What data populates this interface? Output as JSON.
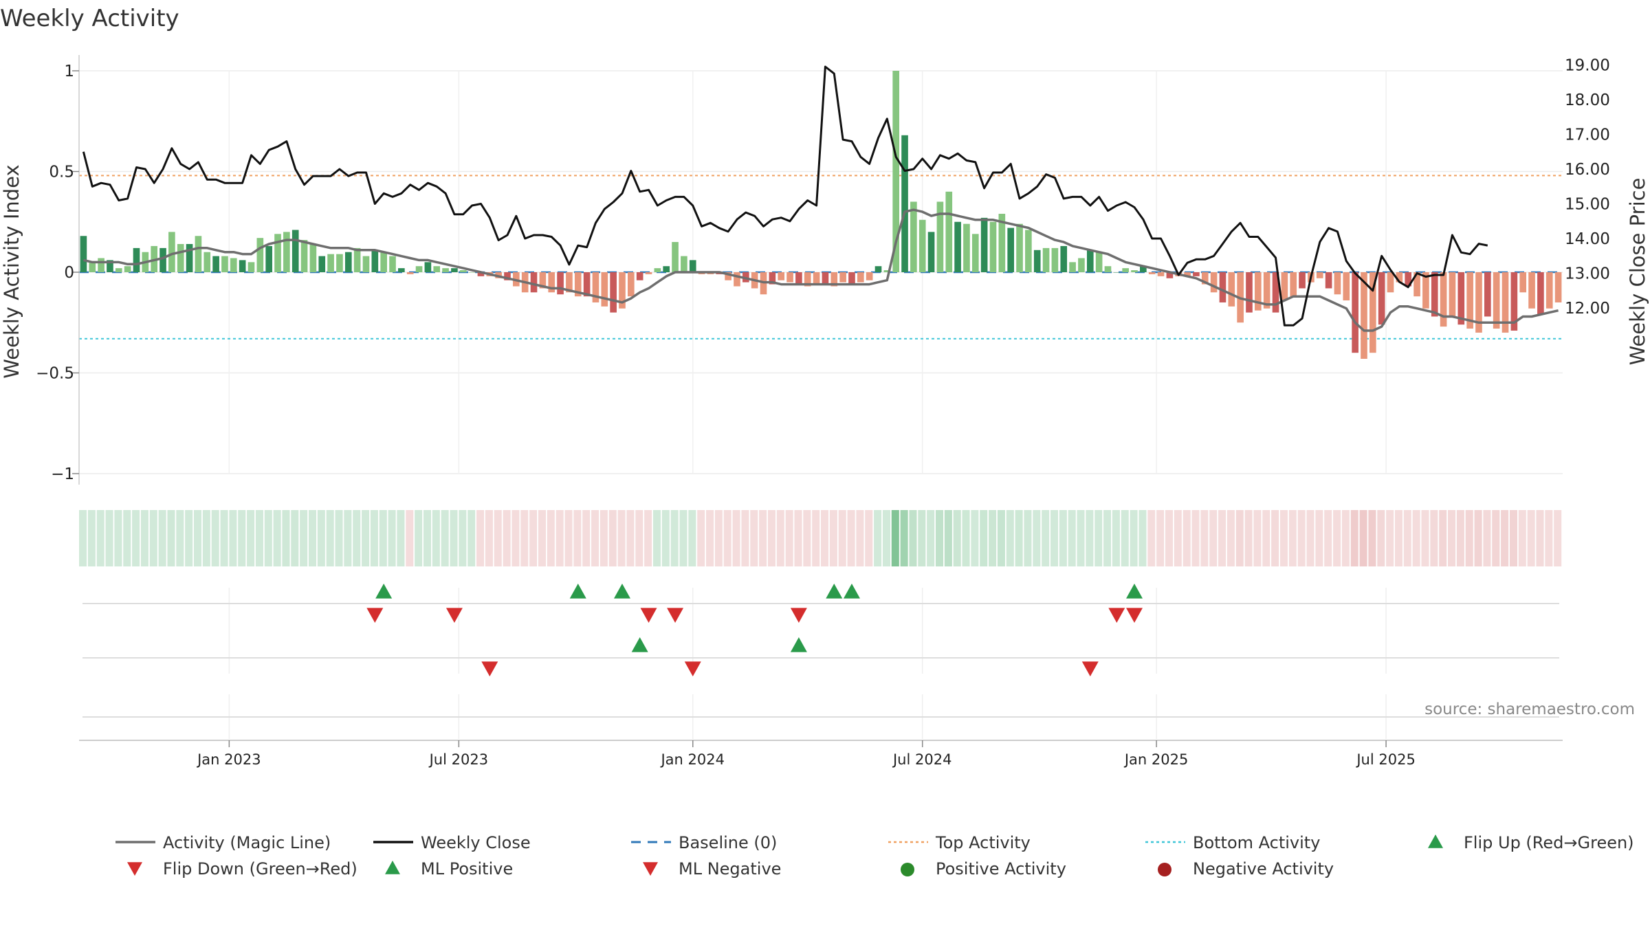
{
  "chart_data": {
    "type": "bar",
    "title": "Weekly Activity",
    "ylabel_left": "Weekly Activity Index",
    "ylabel_right": "Weekly Close Price",
    "source": "source: sharemaestro.com",
    "y_left_ticks": [
      {
        "v": 1,
        "label": "1"
      },
      {
        "v": 0.5,
        "label": "0.5"
      },
      {
        "v": 0,
        "label": "0"
      },
      {
        "v": -0.5,
        "label": "−0.5"
      },
      {
        "v": -1,
        "label": "−1"
      }
    ],
    "y_right_ticks": [
      {
        "v": 19,
        "label": "19.00"
      },
      {
        "v": 18,
        "label": "18.00"
      },
      {
        "v": 17,
        "label": "17.00"
      },
      {
        "v": 16,
        "label": "16.00"
      },
      {
        "v": 15,
        "label": "15.00"
      },
      {
        "v": 14,
        "label": "14.00"
      },
      {
        "v": 13,
        "label": "13.00"
      },
      {
        "v": 12,
        "label": "12.00"
      }
    ],
    "x_ticks": [
      {
        "week": 16.5,
        "label": "Jan 2023"
      },
      {
        "week": 42.5,
        "label": "Jul 2023"
      },
      {
        "week": 69,
        "label": "Jan 2024"
      },
      {
        "week": 95,
        "label": "Jul 2024"
      },
      {
        "week": 121.5,
        "label": "Jan 2025"
      },
      {
        "week": 147.5,
        "label": "Jul 2025"
      }
    ],
    "top_activity": 0.48,
    "bottom_activity": -0.33,
    "activity": [
      0.18,
      0.05,
      0.07,
      0.06,
      0.02,
      0.03,
      0.12,
      0.1,
      0.13,
      0.12,
      0.2,
      0.14,
      0.14,
      0.18,
      0.1,
      0.08,
      0.08,
      0.07,
      0.06,
      0.05,
      0.17,
      0.13,
      0.19,
      0.2,
      0.21,
      0.16,
      0.14,
      0.08,
      0.09,
      0.09,
      0.1,
      0.12,
      0.08,
      0.11,
      0.1,
      0.08,
      0.02,
      -0.01,
      0.03,
      0.05,
      0.03,
      0.02,
      0.02,
      0.01,
      0.0,
      -0.02,
      -0.02,
      -0.03,
      -0.04,
      -0.07,
      -0.1,
      -0.1,
      -0.08,
      -0.1,
      -0.11,
      -0.1,
      -0.12,
      -0.12,
      -0.15,
      -0.17,
      -0.2,
      -0.18,
      -0.12,
      -0.04,
      -0.01,
      0.02,
      0.03,
      0.15,
      0.08,
      0.06,
      -0.01,
      -0.01,
      -0.01,
      -0.04,
      -0.07,
      -0.05,
      -0.08,
      -0.11,
      -0.06,
      -0.04,
      -0.05,
      -0.06,
      -0.07,
      -0.06,
      -0.06,
      -0.07,
      -0.05,
      -0.06,
      -0.05,
      -0.04,
      0.03,
      0.01,
      1.0,
      0.68,
      0.35,
      0.26,
      0.2,
      0.35,
      0.4,
      0.25,
      0.24,
      0.19,
      0.27,
      0.25,
      0.29,
      0.22,
      0.24,
      0.21,
      0.11,
      0.12,
      0.12,
      0.13,
      0.05,
      0.07,
      0.11,
      0.1,
      0.03,
      0.0,
      0.02,
      0.01,
      0.03,
      -0.01,
      -0.02,
      -0.03,
      -0.02,
      -0.02,
      -0.02,
      -0.06,
      -0.1,
      -0.15,
      -0.17,
      -0.25,
      -0.2,
      -0.19,
      -0.18,
      -0.2,
      -0.14,
      -0.12,
      -0.08,
      -0.05,
      -0.03,
      -0.08,
      -0.11,
      -0.14,
      -0.4,
      -0.43,
      -0.4,
      -0.26,
      -0.1,
      -0.05,
      -0.07,
      -0.12,
      -0.18,
      -0.22,
      -0.27,
      -0.22,
      -0.26,
      -0.28,
      -0.3,
      -0.22,
      -0.28,
      -0.3,
      -0.29,
      -0.1,
      -0.18,
      -0.21,
      -0.18,
      -0.15
    ],
    "magic_line": [
      0.06,
      0.05,
      0.05,
      0.05,
      0.05,
      0.04,
      0.04,
      0.05,
      0.06,
      0.07,
      0.09,
      0.1,
      0.11,
      0.12,
      0.12,
      0.11,
      0.1,
      0.1,
      0.09,
      0.09,
      0.12,
      0.14,
      0.15,
      0.16,
      0.16,
      0.15,
      0.14,
      0.13,
      0.12,
      0.12,
      0.12,
      0.11,
      0.11,
      0.11,
      0.1,
      0.09,
      0.08,
      0.07,
      0.06,
      0.06,
      0.05,
      0.04,
      0.03,
      0.02,
      0.01,
      0.0,
      -0.01,
      -0.02,
      -0.03,
      -0.04,
      -0.05,
      -0.06,
      -0.07,
      -0.08,
      -0.08,
      -0.09,
      -0.1,
      -0.11,
      -0.12,
      -0.13,
      -0.14,
      -0.15,
      -0.13,
      -0.1,
      -0.08,
      -0.05,
      -0.02,
      0.0,
      0.0,
      0.0,
      0.0,
      0.0,
      0.0,
      -0.01,
      -0.02,
      -0.03,
      -0.04,
      -0.05,
      -0.05,
      -0.06,
      -0.06,
      -0.06,
      -0.06,
      -0.06,
      -0.06,
      -0.06,
      -0.06,
      -0.06,
      -0.06,
      -0.06,
      -0.05,
      -0.04,
      0.15,
      0.3,
      0.31,
      0.3,
      0.28,
      0.29,
      0.29,
      0.28,
      0.27,
      0.26,
      0.26,
      0.26,
      0.25,
      0.24,
      0.23,
      0.22,
      0.2,
      0.18,
      0.16,
      0.15,
      0.13,
      0.12,
      0.11,
      0.1,
      0.09,
      0.07,
      0.05,
      0.04,
      0.03,
      0.02,
      0.01,
      0.0,
      -0.01,
      -0.02,
      -0.03,
      -0.05,
      -0.07,
      -0.09,
      -0.11,
      -0.13,
      -0.14,
      -0.15,
      -0.16,
      -0.16,
      -0.14,
      -0.12,
      -0.12,
      -0.12,
      -0.12,
      -0.14,
      -0.16,
      -0.18,
      -0.25,
      -0.29,
      -0.29,
      -0.27,
      -0.2,
      -0.17,
      -0.17,
      -0.18,
      -0.19,
      -0.2,
      -0.22,
      -0.22,
      -0.23,
      -0.24,
      -0.25,
      -0.25,
      -0.25,
      -0.25,
      -0.25,
      -0.22,
      -0.22,
      -0.21,
      -0.2,
      -0.19
    ],
    "weekly_close": [
      16.5,
      15.5,
      15.6,
      15.55,
      15.1,
      15.15,
      16.05,
      16.0,
      15.6,
      16.0,
      16.6,
      16.15,
      16.0,
      16.2,
      15.7,
      15.7,
      15.6,
      15.6,
      15.6,
      16.4,
      16.15,
      16.55,
      16.65,
      16.8,
      16.0,
      15.55,
      15.8,
      15.8,
      15.8,
      16.0,
      15.8,
      15.9,
      15.9,
      15.0,
      15.3,
      15.2,
      15.3,
      15.55,
      15.4,
      15.6,
      15.5,
      15.3,
      14.7,
      14.7,
      14.95,
      15.0,
      14.6,
      13.95,
      14.1,
      14.65,
      14.0,
      14.1,
      14.1,
      14.05,
      13.8,
      13.25,
      13.8,
      13.75,
      14.45,
      14.85,
      15.05,
      15.3,
      15.95,
      15.35,
      15.4,
      14.95,
      15.1,
      15.2,
      15.2,
      14.95,
      14.35,
      14.45,
      14.3,
      14.2,
      14.55,
      14.75,
      14.65,
      14.35,
      14.55,
      14.6,
      14.5,
      14.85,
      15.1,
      14.95,
      18.95,
      18.75,
      16.85,
      16.8,
      16.35,
      16.15,
      16.9,
      17.45,
      16.35,
      15.95,
      16.0,
      16.3,
      16.0,
      16.4,
      16.3,
      16.45,
      16.25,
      16.2,
      15.45,
      15.9,
      15.9,
      16.15,
      15.15,
      15.3,
      15.5,
      15.85,
      15.75,
      15.15,
      15.2,
      15.2,
      14.95,
      15.2,
      14.8,
      14.95,
      15.05,
      14.9,
      14.55,
      14.0,
      14.0,
      13.5,
      12.95,
      13.3,
      13.4,
      13.4,
      13.5,
      13.85,
      14.2,
      14.45,
      14.05,
      14.05,
      13.75,
      13.45,
      11.5,
      11.5,
      11.7,
      12.9,
      13.9,
      14.3,
      14.2,
      13.35,
      13.0,
      12.75,
      12.5,
      13.5,
      13.1,
      12.75,
      12.6,
      13.0,
      12.9,
      12.95,
      12.95,
      14.1,
      13.6,
      13.55,
      13.85,
      13.8
    ],
    "flip_up_weeks": [
      34,
      56,
      61,
      85,
      87,
      119
    ],
    "flip_down_weeks": [
      33,
      42,
      64,
      67,
      81,
      117,
      119
    ],
    "ml_positive_weeks": [
      63,
      81
    ],
    "ml_negative_weeks": [
      46,
      69,
      114
    ],
    "legend": [
      {
        "label": "Activity (Magic Line)",
        "kind": "line",
        "color": "#6e6e6e"
      },
      {
        "label": "Weekly Close",
        "kind": "line",
        "color": "#111111"
      },
      {
        "label": "Baseline (0)",
        "kind": "dashed",
        "color": "#2f78b8"
      },
      {
        "label": "Top Activity",
        "kind": "dotted",
        "color": "#f0a060"
      },
      {
        "label": "Bottom Activity",
        "kind": "dotted",
        "color": "#3ec6d8"
      },
      {
        "label": "Flip Up (Red→Green)",
        "kind": "tri-up",
        "color": "#2a9a4a"
      },
      {
        "label": "Flip Down (Green→Red)",
        "kind": "tri-down",
        "color": "#d42d2d"
      },
      {
        "label": "ML Positive",
        "kind": "tri-up",
        "color": "#2a9a4a"
      },
      {
        "label": "ML Negative",
        "kind": "tri-down",
        "color": "#d42d2d"
      },
      {
        "label": "Positive Activity",
        "kind": "dot",
        "color": "#2b8a2b"
      },
      {
        "label": "Negative Activity",
        "kind": "dot",
        "color": "#a52020"
      }
    ],
    "colors": {
      "pos_strong": "#2e8b57",
      "pos_light": "#86c57f",
      "neg_strong": "#c85a5a",
      "neg_light": "#e8967a",
      "close": "#111111",
      "magic": "#6e6e6e",
      "baseline": "#2f78b8",
      "top": "#f0a060",
      "bottom": "#3ec6d8",
      "up": "#2a9a4a",
      "down": "#d42d2d"
    }
  }
}
